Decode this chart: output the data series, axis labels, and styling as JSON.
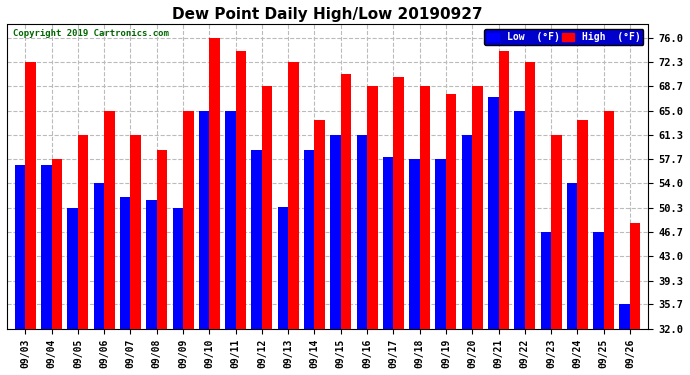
{
  "title": "Dew Point Daily High/Low 20190927",
  "copyright": "Copyright 2019 Cartronics.com",
  "dates": [
    "09/03",
    "09/04",
    "09/05",
    "09/06",
    "09/07",
    "09/08",
    "09/09",
    "09/10",
    "09/11",
    "09/12",
    "09/13",
    "09/14",
    "09/15",
    "09/16",
    "09/17",
    "09/18",
    "09/19",
    "09/20",
    "09/21",
    "09/22",
    "09/23",
    "09/24",
    "09/25",
    "09/26"
  ],
  "high": [
    72.3,
    57.7,
    61.3,
    65.0,
    61.3,
    59.0,
    65.0,
    76.0,
    74.0,
    68.7,
    72.3,
    63.5,
    70.5,
    68.7,
    70.0,
    68.7,
    67.5,
    68.7,
    74.0,
    72.3,
    61.3,
    63.5,
    65.0,
    48.0
  ],
  "low": [
    56.7,
    56.7,
    50.3,
    54.0,
    52.0,
    51.5,
    50.3,
    65.0,
    65.0,
    59.0,
    50.5,
    59.0,
    61.3,
    61.3,
    58.0,
    57.7,
    57.7,
    61.3,
    67.0,
    65.0,
    46.7,
    54.0,
    46.7,
    35.7
  ],
  "high_color": "#FF0000",
  "low_color": "#0000FF",
  "bg_color": "#FFFFFF",
  "plot_bg_color": "#FFFFFF",
  "grid_color": "#BBBBBB",
  "ylim_min": 32.0,
  "ylim_max": 78.0,
  "yticks": [
    32.0,
    35.7,
    39.3,
    43.0,
    46.7,
    50.3,
    54.0,
    57.7,
    61.3,
    65.0,
    68.7,
    72.3,
    76.0
  ],
  "legend_low_label": "Low  (°F)",
  "legend_high_label": "High  (°F)"
}
